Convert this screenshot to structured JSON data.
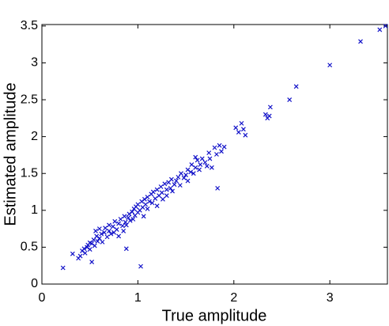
{
  "chart_data": {
    "type": "scatter",
    "xlabel": "True amplitude",
    "ylabel": "Estimated amplitude",
    "color": "#1010c8",
    "xlim": [
      0,
      3.6
    ],
    "ylim": [
      0,
      3.52
    ],
    "xticks": [
      0,
      1,
      2,
      3
    ],
    "yticks": [
      0,
      0.5,
      1,
      1.5,
      2,
      2.5,
      3,
      3.5
    ],
    "x": [
      0.22,
      0.32,
      0.38,
      0.4,
      0.42,
      0.44,
      0.45,
      0.47,
      0.48,
      0.5,
      0.5,
      0.52,
      0.52,
      0.54,
      0.55,
      0.56,
      0.57,
      0.58,
      0.6,
      0.6,
      0.62,
      0.63,
      0.65,
      0.66,
      0.68,
      0.7,
      0.7,
      0.72,
      0.74,
      0.75,
      0.76,
      0.78,
      0.8,
      0.8,
      0.82,
      0.84,
      0.85,
      0.86,
      0.87,
      0.88,
      0.88,
      0.9,
      0.91,
      0.92,
      0.94,
      0.95,
      0.96,
      0.97,
      0.98,
      1.0,
      1.0,
      1.02,
      1.03,
      1.04,
      1.05,
      1.06,
      1.07,
      1.08,
      1.1,
      1.1,
      1.12,
      1.14,
      1.15,
      1.16,
      1.18,
      1.2,
      1.2,
      1.22,
      1.24,
      1.25,
      1.26,
      1.28,
      1.3,
      1.3,
      1.32,
      1.34,
      1.35,
      1.36,
      1.38,
      1.4,
      1.42,
      1.44,
      1.45,
      1.48,
      1.5,
      1.52,
      1.52,
      1.55,
      1.56,
      1.58,
      1.6,
      1.6,
      1.62,
      1.64,
      1.65,
      1.67,
      1.7,
      1.72,
      1.74,
      1.75,
      1.77,
      1.8,
      1.82,
      1.83,
      1.85,
      1.87,
      1.9,
      2.02,
      2.05,
      2.08,
      2.1,
      2.12,
      2.35,
      2.37,
      2.38,
      2.33,
      2.65,
      2.58,
      3.0,
      3.32,
      3.52,
      3.58
    ],
    "y": [
      0.22,
      0.41,
      0.35,
      0.38,
      0.45,
      0.48,
      0.42,
      0.5,
      0.53,
      0.47,
      0.56,
      0.55,
      0.3,
      0.6,
      0.52,
      0.72,
      0.65,
      0.58,
      0.62,
      0.75,
      0.68,
      0.57,
      0.7,
      0.76,
      0.64,
      0.72,
      0.8,
      0.68,
      0.78,
      0.7,
      0.85,
      0.74,
      0.82,
      0.65,
      0.88,
      0.79,
      0.72,
      0.92,
      0.84,
      0.8,
      0.48,
      0.9,
      0.95,
      0.86,
      0.98,
      0.88,
      1.02,
      0.93,
      1.05,
      0.97,
      1.08,
      1.0,
      0.24,
      1.12,
      1.04,
      0.92,
      1.15,
      1.08,
      1.18,
      1.02,
      1.12,
      1.22,
      1.1,
      1.25,
      1.16,
      1.28,
      1.06,
      1.2,
      1.32,
      1.24,
      1.15,
      1.36,
      1.28,
      1.2,
      1.38,
      1.3,
      1.42,
      1.26,
      1.35,
      1.4,
      1.45,
      1.34,
      1.5,
      1.44,
      1.48,
      1.4,
      1.55,
      1.52,
      1.62,
      1.5,
      1.58,
      1.72,
      1.68,
      1.55,
      1.62,
      1.7,
      1.65,
      1.6,
      1.78,
      1.7,
      1.58,
      1.85,
      1.76,
      1.3,
      1.88,
      1.8,
      1.86,
      2.12,
      2.06,
      2.18,
      2.1,
      2.02,
      2.25,
      2.28,
      2.4,
      2.3,
      2.68,
      2.5,
      2.97,
      3.29,
      3.45,
      3.5
    ]
  }
}
